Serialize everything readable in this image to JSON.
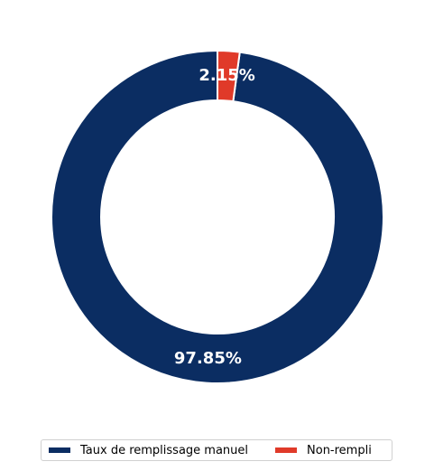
{
  "chart_data": {
    "type": "pie",
    "donut": true,
    "categories": [
      "Taux de remplissage manuel",
      "Non-rempli"
    ],
    "values": [
      97.85,
      2.15
    ],
    "labels": [
      "97.85%",
      "2.15%"
    ],
    "colors": [
      "#0b2d62",
      "#e03a29"
    ],
    "legend": "bottom-center"
  }
}
